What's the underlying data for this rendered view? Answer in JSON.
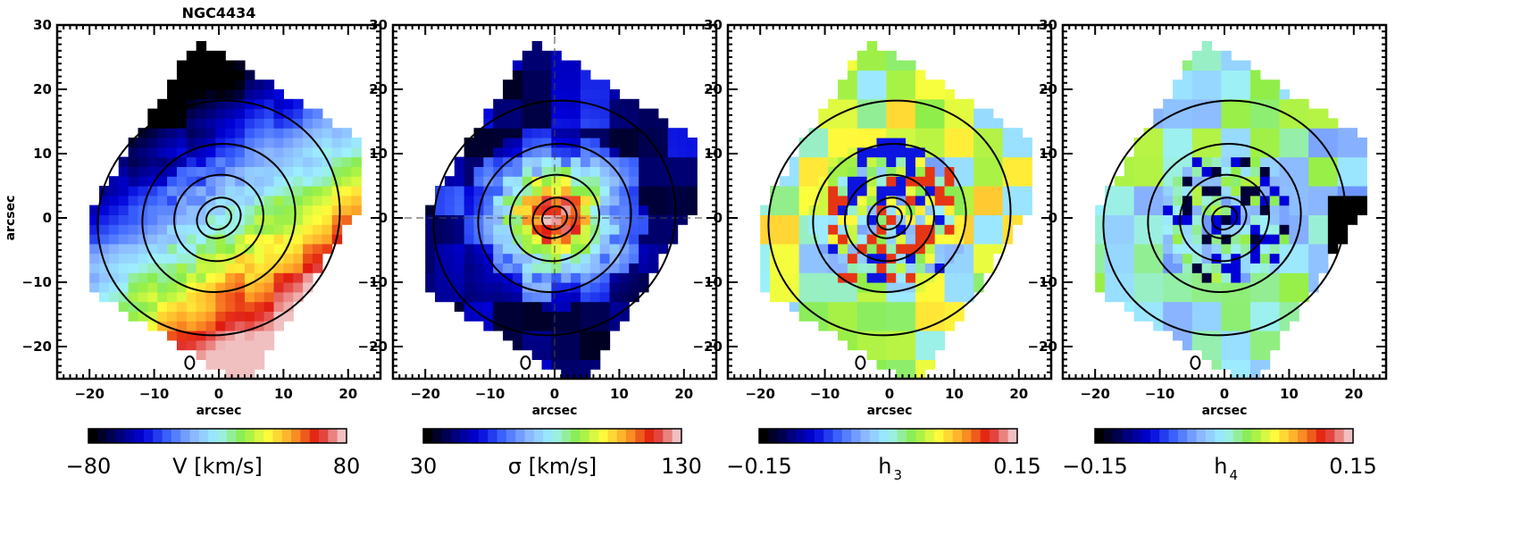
{
  "chart_data": {
    "type": "heatmap",
    "title": "NGC4434",
    "xlabel": "arcsec",
    "ylabel": "arcsec",
    "xlim": [
      -25,
      25
    ],
    "ylim": [
      -25,
      30
    ],
    "xticks": [
      -20,
      -10,
      0,
      10,
      20
    ],
    "yticks": [
      -20,
      -10,
      0,
      10,
      20,
      30
    ],
    "xtick_labels": [
      "−20",
      "−10",
      "0",
      "10",
      "20"
    ],
    "ytick_labels": [
      "−20",
      "−10",
      "0",
      "10",
      "20",
      "30"
    ],
    "colormap_stops": [
      "#000000",
      "#000070",
      "#0000d8",
      "#3c64ff",
      "#8ab4ff",
      "#9ef0ff",
      "#8aed4a",
      "#ffff3c",
      "#ffa028",
      "#e01a10",
      "#f0c0c0"
    ],
    "panels": [
      {
        "name": "velocity",
        "quantity": "V [km/s]",
        "cbar_min_label": "−80",
        "cbar_max_label": "80",
        "cbar_label_main": "V [km/s]",
        "cbar_label_sub": "",
        "vmin": -80,
        "vmax": 80,
        "show_ylabel": true,
        "show_crosshair": false
      },
      {
        "name": "dispersion",
        "quantity": "σ [km/s]",
        "cbar_min_label": "30",
        "cbar_max_label": "130",
        "cbar_label_main": "σ [km/s]",
        "cbar_label_sub": "",
        "vmin": 30,
        "vmax": 130,
        "show_ylabel": false,
        "show_crosshair": true
      },
      {
        "name": "h3",
        "quantity": "h3",
        "cbar_min_label": "−0.15",
        "cbar_max_label": "0.15",
        "cbar_label_main": "h",
        "cbar_label_sub": "3",
        "vmin": -0.15,
        "vmax": 0.15,
        "show_ylabel": false,
        "show_crosshair": false
      },
      {
        "name": "h4",
        "quantity": "h4",
        "cbar_min_label": "−0.15",
        "cbar_max_label": "0.15",
        "cbar_label_main": "h",
        "cbar_label_sub": "4",
        "vmin": -0.15,
        "vmax": 0.15,
        "show_ylabel": false,
        "show_crosshair": false
      }
    ],
    "contour_levels_arcsec": [
      2,
      3.5,
      7,
      12,
      19
    ]
  }
}
